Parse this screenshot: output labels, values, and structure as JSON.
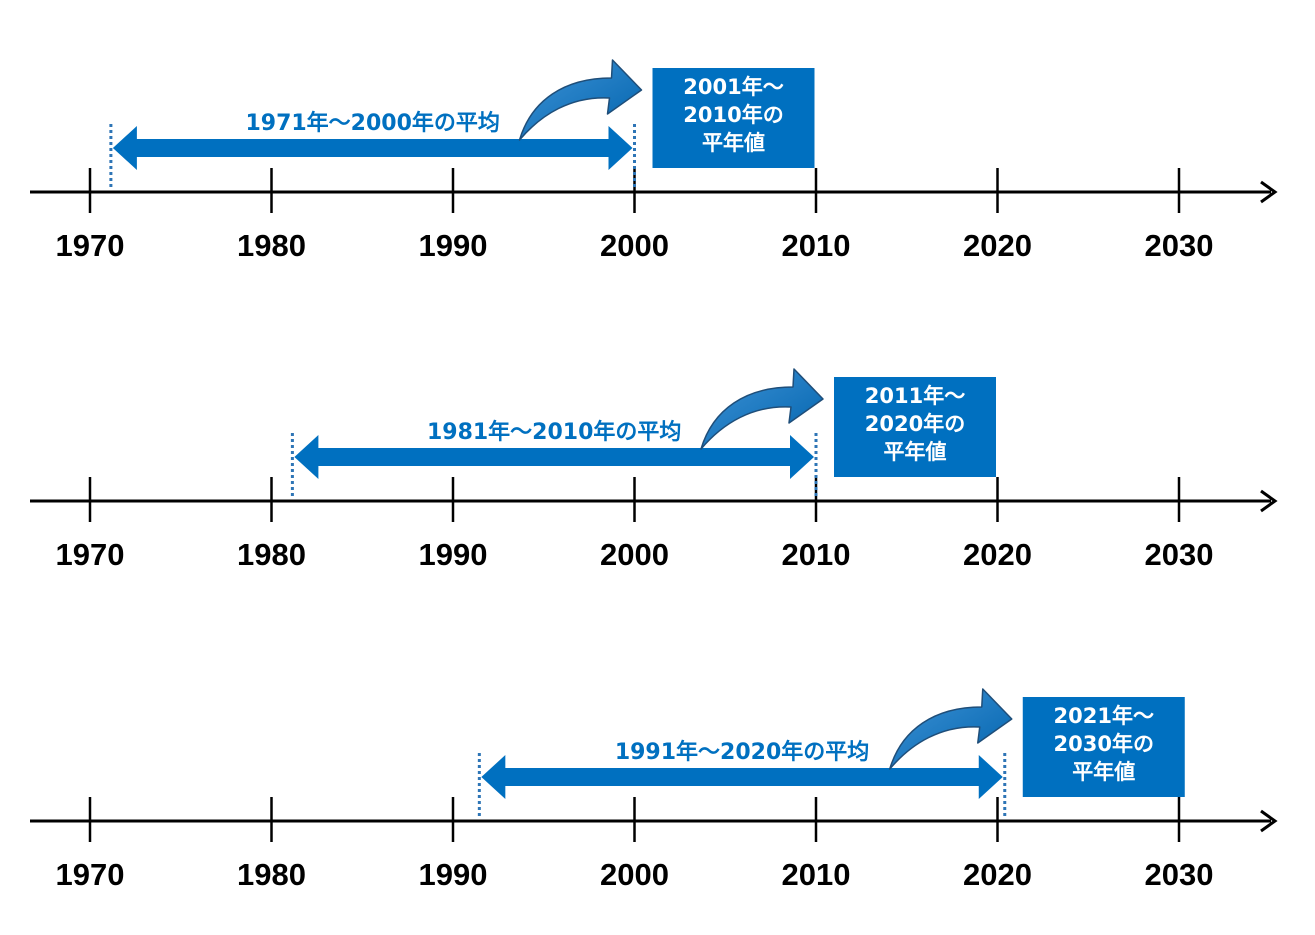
{
  "axis_years": [
    "1970",
    "1980",
    "1990",
    "2000",
    "2010",
    "2020",
    "2030"
  ],
  "colors": {
    "accent": "#0070C0",
    "axis": "#000000",
    "box_text": "#FFFFFF",
    "dotted": "#2E75B6"
  },
  "timelines": [
    {
      "period_label": "1971年～2000年の平均",
      "start_year": 1970.6,
      "end_year": 2000.0,
      "box_lines": [
        "2001年～",
        "2010年の",
        "平年値"
      ]
    },
    {
      "period_label": "1981年～2010年の平均",
      "start_year": 1980.6,
      "end_year": 2010.0,
      "box_lines": [
        "2011年～",
        "2020年の",
        "平年値"
      ]
    },
    {
      "period_label": "1991年～2020年の平均",
      "start_year": 1990.9,
      "end_year": 2020.4,
      "box_lines": [
        "2021年～",
        "2030年の",
        "平年値"
      ]
    }
  ]
}
